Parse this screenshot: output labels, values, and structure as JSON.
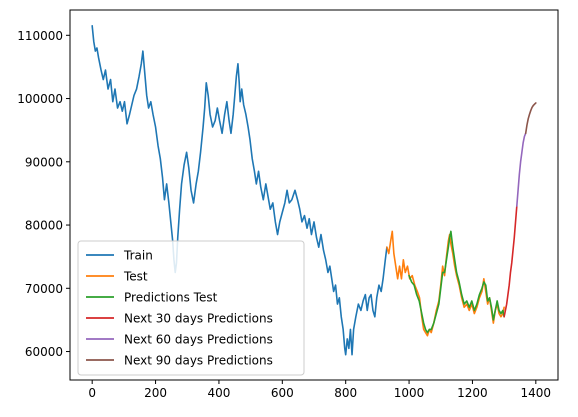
{
  "chart_data": {
    "type": "line",
    "title": "",
    "xlabel": "",
    "ylabel": "",
    "xlim": [
      -70,
      1470
    ],
    "ylim": [
      55500,
      114000
    ],
    "x_ticks": [
      0,
      200,
      400,
      600,
      800,
      1000,
      1200,
      1400
    ],
    "y_ticks": [
      60000,
      70000,
      80000,
      90000,
      100000,
      110000
    ],
    "grid": false,
    "legend_position": "lower-left",
    "series": [
      {
        "name": "Train",
        "color": "#1f77b4",
        "points": [
          [
            0,
            111500
          ],
          [
            5,
            109000
          ],
          [
            10,
            107500
          ],
          [
            15,
            108000
          ],
          [
            20,
            106500
          ],
          [
            28,
            104500
          ],
          [
            35,
            103000
          ],
          [
            42,
            104500
          ],
          [
            50,
            101500
          ],
          [
            58,
            103000
          ],
          [
            65,
            99500
          ],
          [
            72,
            101500
          ],
          [
            80,
            98500
          ],
          [
            88,
            99500
          ],
          [
            95,
            98000
          ],
          [
            102,
            99500
          ],
          [
            110,
            96000
          ],
          [
            118,
            97500
          ],
          [
            125,
            99000
          ],
          [
            132,
            100500
          ],
          [
            140,
            101500
          ],
          [
            148,
            103500
          ],
          [
            155,
            105500
          ],
          [
            160,
            107500
          ],
          [
            166,
            104000
          ],
          [
            172,
            100500
          ],
          [
            178,
            98500
          ],
          [
            185,
            99500
          ],
          [
            192,
            97500
          ],
          [
            200,
            95500
          ],
          [
            208,
            92500
          ],
          [
            215,
            90500
          ],
          [
            222,
            87500
          ],
          [
            228,
            84000
          ],
          [
            235,
            86500
          ],
          [
            242,
            83500
          ],
          [
            248,
            80500
          ],
          [
            254,
            77500
          ],
          [
            258,
            74500
          ],
          [
            262,
            72500
          ],
          [
            266,
            74000
          ],
          [
            270,
            78000
          ],
          [
            276,
            82500
          ],
          [
            282,
            86500
          ],
          [
            290,
            89500
          ],
          [
            298,
            91500
          ],
          [
            305,
            89000
          ],
          [
            312,
            85500
          ],
          [
            320,
            83500
          ],
          [
            328,
            86500
          ],
          [
            335,
            88500
          ],
          [
            342,
            91500
          ],
          [
            350,
            95500
          ],
          [
            355,
            98500
          ],
          [
            360,
            102500
          ],
          [
            366,
            100500
          ],
          [
            372,
            97500
          ],
          [
            380,
            95500
          ],
          [
            388,
            96500
          ],
          [
            395,
            98500
          ],
          [
            402,
            96500
          ],
          [
            410,
            94500
          ],
          [
            418,
            97500
          ],
          [
            425,
            99500
          ],
          [
            432,
            96500
          ],
          [
            438,
            94500
          ],
          [
            445,
            97500
          ],
          [
            450,
            100500
          ],
          [
            455,
            103500
          ],
          [
            460,
            105500
          ],
          [
            464,
            102500
          ],
          [
            467,
            99500
          ],
          [
            472,
            101500
          ],
          [
            478,
            99000
          ],
          [
            485,
            97500
          ],
          [
            492,
            95500
          ],
          [
            498,
            93500
          ],
          [
            505,
            90500
          ],
          [
            512,
            88500
          ],
          [
            518,
            86500
          ],
          [
            525,
            88500
          ],
          [
            532,
            86000
          ],
          [
            540,
            84000
          ],
          [
            548,
            86500
          ],
          [
            555,
            84500
          ],
          [
            562,
            82500
          ],
          [
            570,
            83500
          ],
          [
            578,
            80500
          ],
          [
            585,
            78500
          ],
          [
            592,
            80500
          ],
          [
            600,
            82000
          ],
          [
            608,
            83500
          ],
          [
            615,
            85500
          ],
          [
            622,
            83500
          ],
          [
            630,
            84000
          ],
          [
            640,
            85500
          ],
          [
            648,
            84000
          ],
          [
            655,
            82500
          ],
          [
            662,
            80500
          ],
          [
            670,
            81500
          ],
          [
            678,
            79500
          ],
          [
            685,
            81000
          ],
          [
            692,
            78500
          ],
          [
            700,
            80500
          ],
          [
            708,
            78000
          ],
          [
            715,
            76500
          ],
          [
            722,
            78500
          ],
          [
            730,
            76000
          ],
          [
            737,
            74500
          ],
          [
            744,
            72500
          ],
          [
            750,
            73500
          ],
          [
            756,
            71500
          ],
          [
            762,
            69500
          ],
          [
            768,
            70500
          ],
          [
            774,
            67500
          ],
          [
            780,
            68500
          ],
          [
            786,
            65500
          ],
          [
            792,
            63500
          ],
          [
            797,
            60500
          ],
          [
            800,
            59500
          ],
          [
            805,
            62000
          ],
          [
            810,
            60500
          ],
          [
            815,
            63500
          ],
          [
            820,
            59500
          ],
          [
            825,
            63500
          ],
          [
            832,
            65500
          ],
          [
            840,
            67500
          ],
          [
            848,
            66500
          ],
          [
            855,
            68000
          ],
          [
            862,
            69000
          ],
          [
            868,
            66500
          ],
          [
            874,
            68500
          ],
          [
            880,
            69000
          ],
          [
            886,
            66500
          ],
          [
            892,
            65500
          ],
          [
            898,
            68500
          ],
          [
            905,
            70500
          ],
          [
            912,
            69500
          ],
          [
            918,
            71500
          ],
          [
            925,
            74500
          ],
          [
            930,
            76500
          ]
        ]
      },
      {
        "name": "Test",
        "color": "#ff7f0e",
        "points": [
          [
            930,
            76500
          ],
          [
            936,
            75500
          ],
          [
            942,
            77500
          ],
          [
            947,
            79000
          ],
          [
            952,
            75500
          ],
          [
            958,
            73500
          ],
          [
            964,
            71500
          ],
          [
            970,
            73500
          ],
          [
            976,
            71500
          ],
          [
            982,
            74500
          ],
          [
            988,
            72500
          ],
          [
            995,
            73500
          ],
          [
            1002,
            71500
          ],
          [
            1010,
            72000
          ],
          [
            1018,
            70500
          ],
          [
            1026,
            69500
          ],
          [
            1033,
            68500
          ],
          [
            1040,
            65500
          ],
          [
            1046,
            63500
          ],
          [
            1052,
            63000
          ],
          [
            1058,
            62500
          ],
          [
            1064,
            63500
          ],
          [
            1070,
            63000
          ],
          [
            1078,
            64500
          ],
          [
            1086,
            66500
          ],
          [
            1094,
            68000
          ],
          [
            1100,
            70500
          ],
          [
            1106,
            73500
          ],
          [
            1112,
            72000
          ],
          [
            1118,
            75000
          ],
          [
            1124,
            77500
          ],
          [
            1128,
            78500
          ],
          [
            1132,
            77000
          ],
          [
            1138,
            75500
          ],
          [
            1144,
            73500
          ],
          [
            1150,
            72000
          ],
          [
            1158,
            70500
          ],
          [
            1166,
            68500
          ],
          [
            1174,
            67000
          ],
          [
            1182,
            67500
          ],
          [
            1190,
            66500
          ],
          [
            1198,
            67500
          ],
          [
            1206,
            66000
          ],
          [
            1214,
            67000
          ],
          [
            1222,
            68500
          ],
          [
            1230,
            69500
          ],
          [
            1236,
            71500
          ],
          [
            1242,
            69500
          ],
          [
            1248,
            67500
          ],
          [
            1254,
            68500
          ],
          [
            1260,
            66500
          ],
          [
            1266,
            64500
          ],
          [
            1272,
            66500
          ],
          [
            1278,
            67500
          ],
          [
            1284,
            66000
          ],
          [
            1290,
            65500
          ],
          [
            1296,
            66000
          ],
          [
            1300,
            67000
          ]
        ]
      },
      {
        "name": "Predictions Test",
        "color": "#2ca02c",
        "points": [
          [
            1000,
            72000
          ],
          [
            1008,
            71000
          ],
          [
            1016,
            70500
          ],
          [
            1024,
            69000
          ],
          [
            1032,
            68000
          ],
          [
            1040,
            66000
          ],
          [
            1046,
            64500
          ],
          [
            1052,
            63500
          ],
          [
            1058,
            63000
          ],
          [
            1064,
            63500
          ],
          [
            1070,
            63500
          ],
          [
            1078,
            64500
          ],
          [
            1086,
            66000
          ],
          [
            1094,
            67500
          ],
          [
            1100,
            70000
          ],
          [
            1106,
            72500
          ],
          [
            1112,
            72500
          ],
          [
            1118,
            74500
          ],
          [
            1124,
            76500
          ],
          [
            1128,
            78000
          ],
          [
            1132,
            79000
          ],
          [
            1138,
            76500
          ],
          [
            1144,
            74500
          ],
          [
            1150,
            72500
          ],
          [
            1158,
            71000
          ],
          [
            1166,
            69000
          ],
          [
            1174,
            67500
          ],
          [
            1182,
            68000
          ],
          [
            1190,
            67000
          ],
          [
            1198,
            68000
          ],
          [
            1206,
            66500
          ],
          [
            1214,
            67500
          ],
          [
            1222,
            69000
          ],
          [
            1230,
            70000
          ],
          [
            1236,
            71000
          ],
          [
            1242,
            70500
          ],
          [
            1248,
            68000
          ],
          [
            1254,
            68500
          ],
          [
            1260,
            67000
          ],
          [
            1266,
            65000
          ],
          [
            1272,
            66500
          ],
          [
            1278,
            68000
          ],
          [
            1284,
            66500
          ],
          [
            1290,
            66000
          ],
          [
            1296,
            66500
          ],
          [
            1300,
            65500
          ]
        ]
      },
      {
        "name": "Next 30 days Predictions",
        "color": "#d62728",
        "points": [
          [
            1300,
            65500
          ],
          [
            1304,
            66500
          ],
          [
            1308,
            67500
          ],
          [
            1312,
            69000
          ],
          [
            1316,
            70500
          ],
          [
            1320,
            72500
          ],
          [
            1324,
            74000
          ],
          [
            1328,
            76000
          ],
          [
            1332,
            78000
          ],
          [
            1336,
            80500
          ],
          [
            1340,
            83000
          ]
        ]
      },
      {
        "name": "Next 60 days Predictions",
        "color": "#9467bd",
        "points": [
          [
            1340,
            83000
          ],
          [
            1344,
            85500
          ],
          [
            1348,
            88000
          ],
          [
            1352,
            90000
          ],
          [
            1356,
            91500
          ],
          [
            1360,
            93000
          ],
          [
            1364,
            94000
          ],
          [
            1368,
            94500
          ]
        ]
      },
      {
        "name": "Next 90 days Predictions",
        "color": "#8c564b",
        "points": [
          [
            1368,
            94500
          ],
          [
            1372,
            95800
          ],
          [
            1376,
            96800
          ],
          [
            1380,
            97500
          ],
          [
            1384,
            98100
          ],
          [
            1388,
            98600
          ],
          [
            1392,
            98900
          ],
          [
            1396,
            99100
          ],
          [
            1400,
            99300
          ]
        ]
      }
    ]
  }
}
